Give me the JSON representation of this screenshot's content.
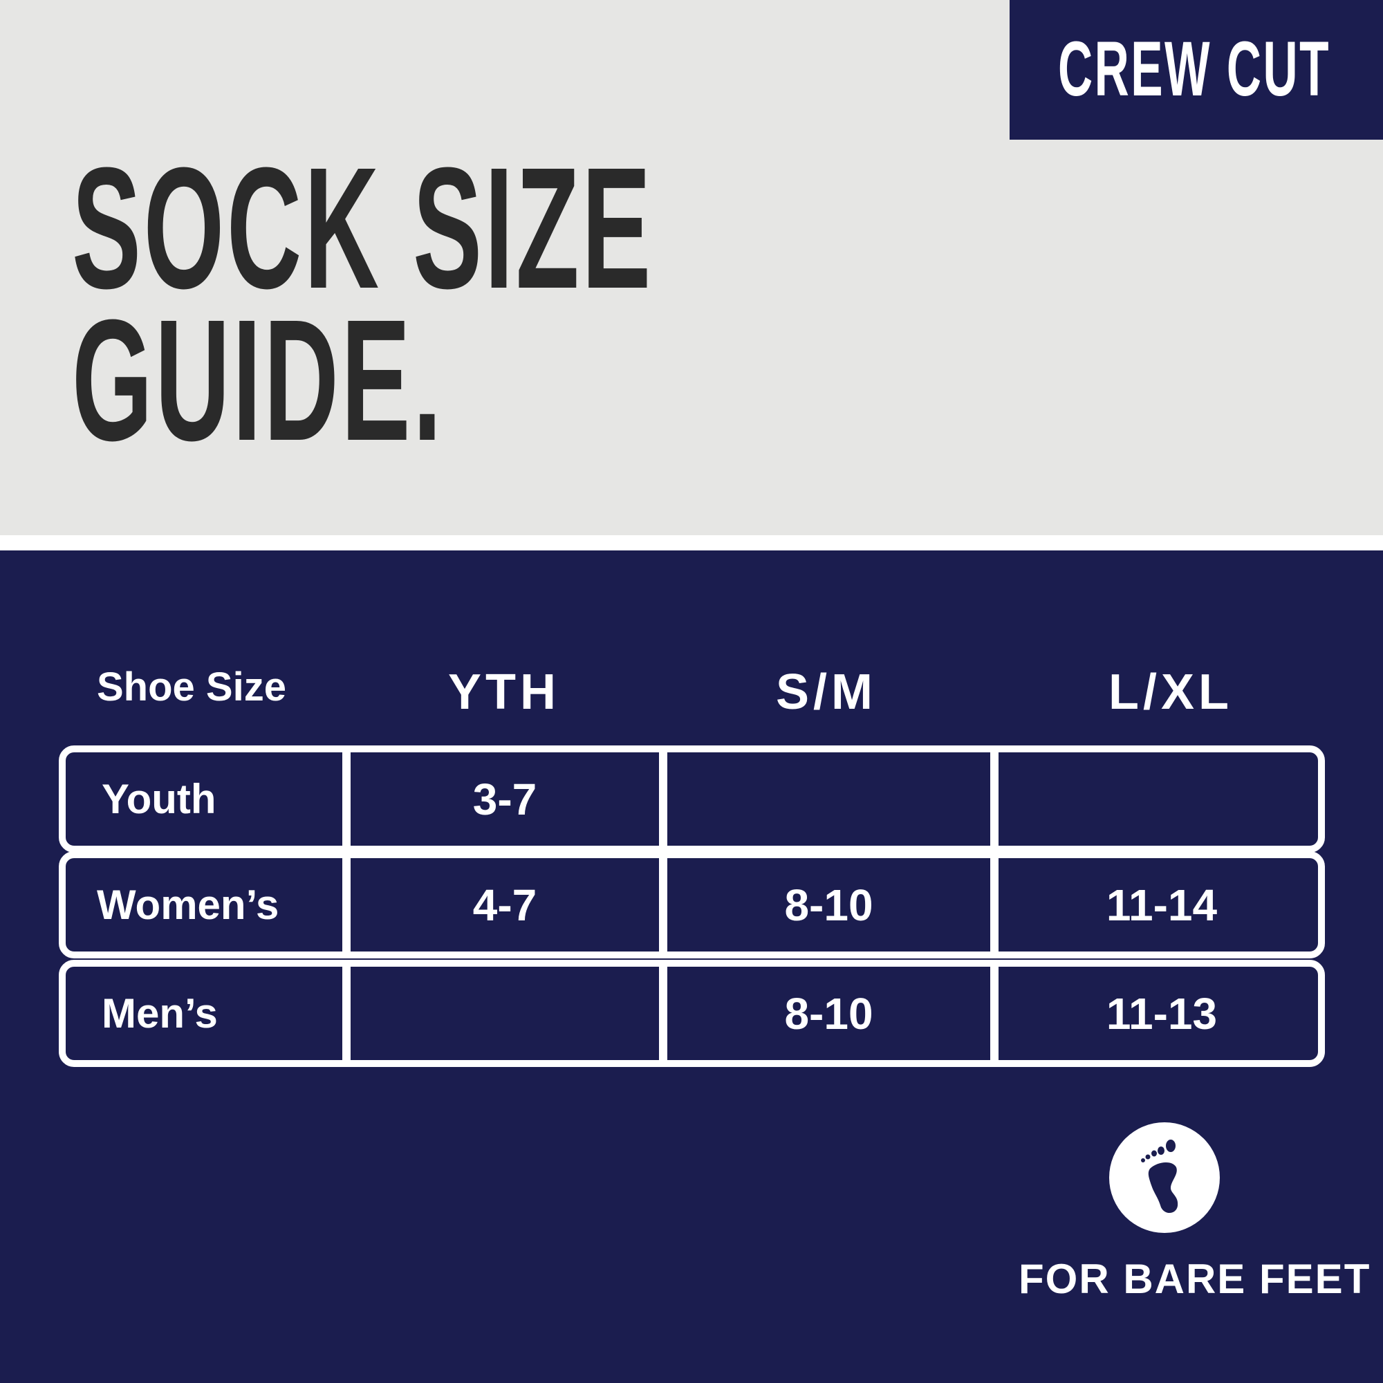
{
  "badge": {
    "label": "CREW CUT"
  },
  "title": {
    "line1": "SOCK SIZE",
    "line2": "GUIDE."
  },
  "table": {
    "headers": [
      "Shoe Size",
      "YTH",
      "S/M",
      "L/XL"
    ],
    "rows": [
      {
        "label": "Youth",
        "values": [
          "3-7",
          "",
          ""
        ]
      },
      {
        "label": "Women’s",
        "values": [
          "4-7",
          "8-10",
          "11-14"
        ]
      },
      {
        "label": "Men’s",
        "values": [
          "",
          "8-10",
          "11-13"
        ]
      }
    ]
  },
  "footer": {
    "icon": "bare-foot-icon",
    "label": "FOR BARE FEET"
  },
  "colors": {
    "navy": "#1b1d4f",
    "gray": "#e6e6e4",
    "dark_text": "#2a2a2a",
    "white": "#ffffff"
  }
}
